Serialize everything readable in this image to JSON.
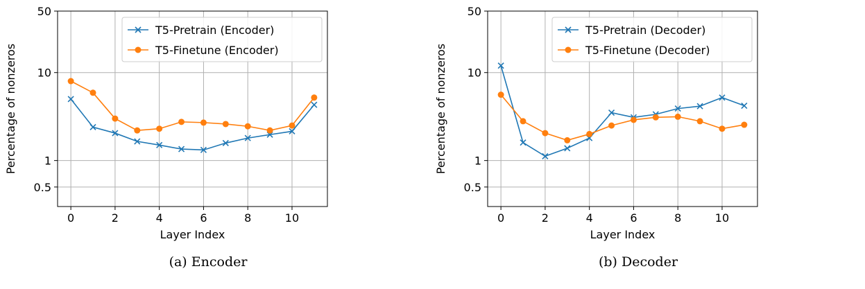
{
  "chart_data": [
    {
      "type": "line",
      "panel": "panel-a",
      "caption": "(a) Encoder",
      "title": "",
      "xlabel": "Layer Index",
      "ylabel": "Percentage of nonzeros",
      "yscale": "log",
      "ylim": [
        0.3,
        50
      ],
      "xlim": [
        -0.6,
        11.6
      ],
      "xticks": [
        0,
        2,
        4,
        6,
        8,
        10
      ],
      "yticks": [
        0.5,
        1,
        10,
        50
      ],
      "ytick_labels": [
        "0.5",
        "1",
        "10",
        "50"
      ],
      "grid": true,
      "legend_position": "top-right",
      "x": [
        0,
        1,
        2,
        3,
        4,
        5,
        6,
        7,
        8,
        9,
        10,
        11
      ],
      "series": [
        {
          "name": "T5-Pretrain (Encoder)",
          "color": "#1f77b4",
          "marker": "x",
          "values": [
            5.0,
            2.4,
            2.05,
            1.65,
            1.5,
            1.35,
            1.32,
            1.58,
            1.8,
            1.97,
            2.15,
            4.3
          ]
        },
        {
          "name": "T5-Finetune (Encoder)",
          "color": "#ff7f0e",
          "marker": "o",
          "values": [
            8.0,
            5.9,
            3.0,
            2.2,
            2.3,
            2.75,
            2.7,
            2.6,
            2.45,
            2.2,
            2.5,
            5.2
          ]
        }
      ]
    },
    {
      "type": "line",
      "panel": "panel-b",
      "caption": "(b) Decoder",
      "title": "",
      "xlabel": "Layer Index",
      "ylabel": "Percentage of nonzeros",
      "yscale": "log",
      "ylim": [
        0.3,
        50
      ],
      "xlim": [
        -0.6,
        11.6
      ],
      "xticks": [
        0,
        2,
        4,
        6,
        8,
        10
      ],
      "yticks": [
        0.5,
        1,
        10,
        50
      ],
      "ytick_labels": [
        "0.5",
        "1",
        "10",
        "50"
      ],
      "grid": true,
      "legend_position": "top-right",
      "x": [
        0,
        1,
        2,
        3,
        4,
        5,
        6,
        7,
        8,
        9,
        10,
        11
      ],
      "series": [
        {
          "name": "T5-Pretrain (Decoder)",
          "color": "#1f77b4",
          "marker": "x",
          "values": [
            12.0,
            1.6,
            1.12,
            1.38,
            1.8,
            3.5,
            3.1,
            3.35,
            3.9,
            4.15,
            5.2,
            4.2
          ]
        },
        {
          "name": "T5-Finetune (Decoder)",
          "color": "#ff7f0e",
          "marker": "o",
          "values": [
            5.6,
            2.8,
            2.05,
            1.7,
            2.0,
            2.5,
            2.9,
            3.1,
            3.15,
            2.8,
            2.3,
            2.55
          ]
        }
      ]
    }
  ]
}
